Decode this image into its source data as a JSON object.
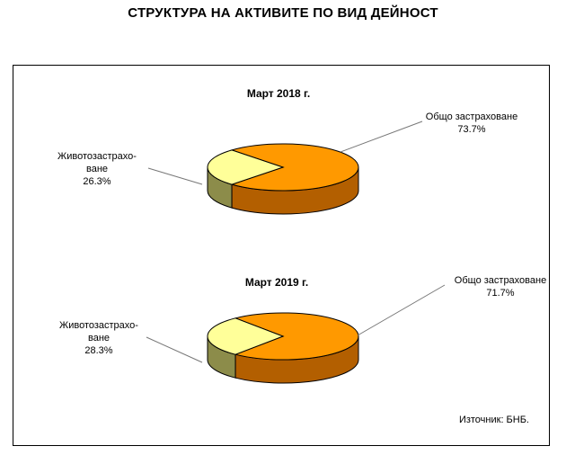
{
  "title": "СТРУКТУРА НА АКТИВИТЕ ПО ВИД ДЕЙНОСТ",
  "source": "Източник: БНБ.",
  "colors": {
    "general": "#ff9900",
    "general_side": "#b35f00",
    "life": "#ffff99",
    "life_side": "#8c8c4a"
  },
  "chart_data": [
    {
      "type": "pie",
      "title": "Март 2018 г.",
      "categories": [
        "Общо застраховане",
        "Животозастрахо-\nване"
      ],
      "values": [
        73.7,
        26.3
      ],
      "labels": {
        "general": {
          "name": "Общо застраховане",
          "value": "73.7%"
        },
        "life": {
          "line1": "Животозастрахо-",
          "line2": "ване",
          "value": "26.3%"
        }
      }
    },
    {
      "type": "pie",
      "title": "Март 2019 г.",
      "categories": [
        "Общо застраховане",
        "Животозастрахо-\nване"
      ],
      "values": [
        71.7,
        28.3
      ],
      "labels": {
        "general": {
          "name": "Общо застраховане",
          "value": "71.7%"
        },
        "life": {
          "line1": "Животозастрахо-",
          "line2": "ване",
          "value": "28.3%"
        }
      }
    }
  ]
}
